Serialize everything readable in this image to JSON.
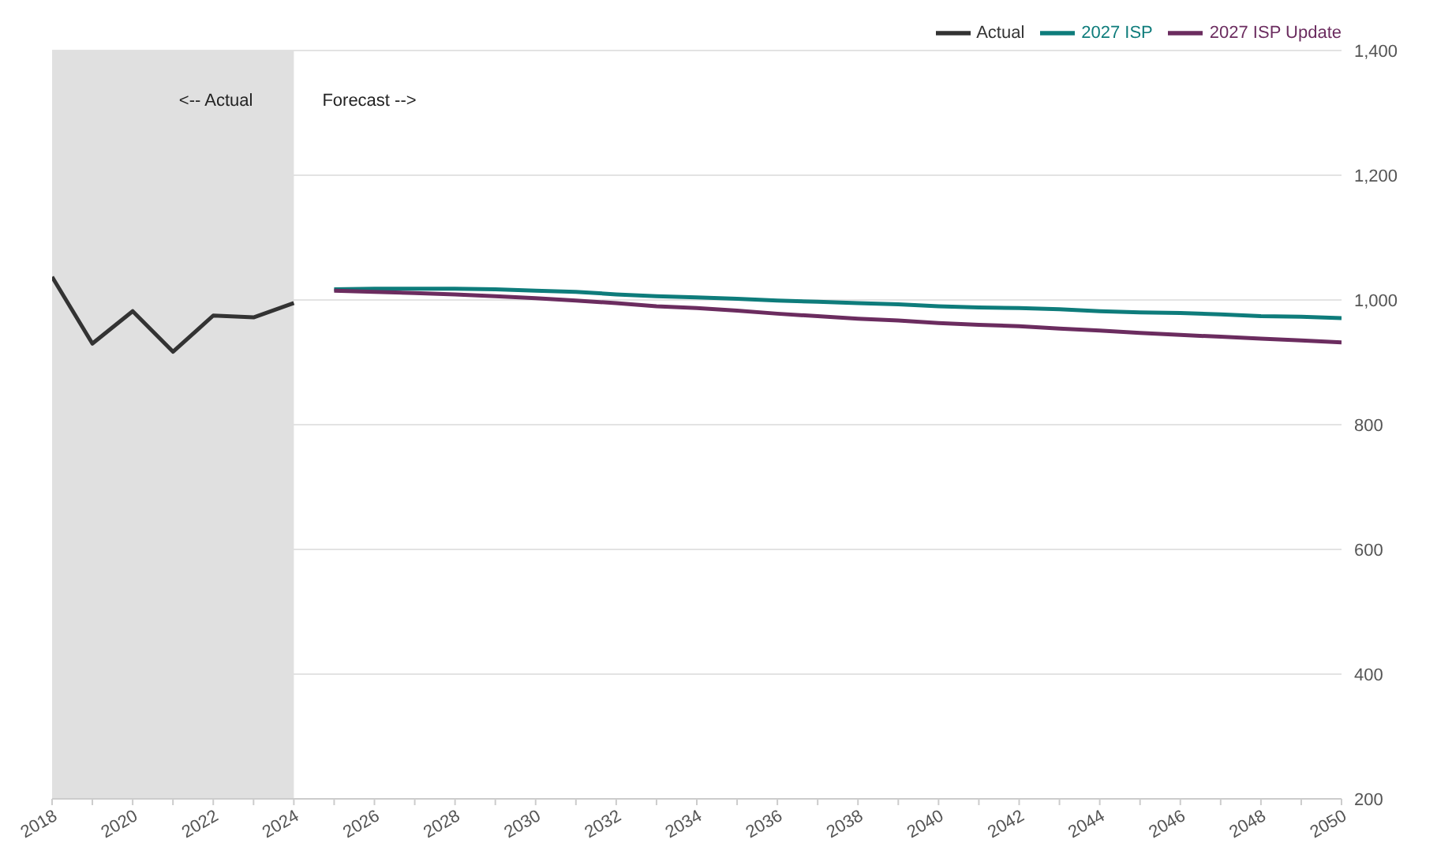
{
  "chart_data": {
    "type": "line",
    "xlim": [
      2018,
      2050
    ],
    "ylim": [
      200,
      1400
    ],
    "xticks": [
      2018,
      {
        "value": 2019,
        "label": null
      },
      2020,
      {
        "value": 2021,
        "label": null
      },
      2022,
      {
        "value": 2023,
        "label": null
      },
      2024,
      {
        "value": 2025,
        "label": null
      },
      2026,
      {
        "value": 2027,
        "label": null
      },
      2028,
      {
        "value": 2029,
        "label": null
      },
      2030,
      {
        "value": 2031,
        "label": null
      },
      2032,
      {
        "value": 2033,
        "label": null
      },
      2034,
      {
        "value": 2035,
        "label": null
      },
      2036,
      {
        "value": 2037,
        "label": null
      },
      2038,
      {
        "value": 2039,
        "label": null
      },
      2040,
      {
        "value": 2041,
        "label": null
      },
      2042,
      {
        "value": 2043,
        "label": null
      },
      2044,
      {
        "value": 2045,
        "label": null
      },
      2046,
      {
        "value": 2047,
        "label": null
      },
      2048,
      {
        "value": 2049,
        "label": null
      },
      2050
    ],
    "yticks": [
      200,
      {
        "value": 400,
        "label": "400"
      },
      {
        "value": 600,
        "label": "600"
      },
      {
        "value": 800,
        "label": "800"
      },
      {
        "value": 1000,
        "label": "1,000"
      },
      {
        "value": 1200,
        "label": "1,200"
      },
      {
        "value": 1400,
        "label": "1,400"
      }
    ],
    "grid": "y",
    "legend": "top right",
    "marker": "none",
    "line_style": "solid",
    "bands": [
      {
        "axis": "x",
        "from": 2018,
        "to": 2024,
        "color": "#e0e0e0"
      }
    ],
    "annotations": [
      "<-- Actual",
      "Forecast -->"
    ],
    "series": [
      {
        "name": "Actual",
        "color": "#333333",
        "x": [
          2018,
          2019,
          2020,
          2021,
          2022,
          2023,
          2024
        ],
        "values": [
          1037,
          930,
          982,
          917,
          975,
          972,
          995
        ]
      },
      {
        "name": "2027 ISP",
        "color": "#0e7c7b",
        "x": [
          2025,
          2026,
          2027,
          2028,
          2029,
          2030,
          2031,
          2032,
          2033,
          2034,
          2035,
          2036,
          2037,
          2038,
          2039,
          2040,
          2041,
          2042,
          2043,
          2044,
          2045,
          2046,
          2047,
          2048,
          2049,
          2050
        ],
        "values": [
          1017,
          1018,
          1018,
          1018,
          1017,
          1015,
          1013,
          1009,
          1006,
          1004,
          1002,
          999,
          997,
          995,
          993,
          990,
          988,
          987,
          985,
          982,
          980,
          979,
          977,
          974,
          973,
          971
        ]
      },
      {
        "name": "2027 ISP Update",
        "color": "#6b2c5f",
        "x": [
          2025,
          2026,
          2027,
          2028,
          2029,
          2030,
          2031,
          2032,
          2033,
          2034,
          2035,
          2036,
          2037,
          2038,
          2039,
          2040,
          2041,
          2042,
          2043,
          2044,
          2045,
          2046,
          2047,
          2048,
          2049,
          2050
        ],
        "values": [
          1015,
          1013,
          1011,
          1009,
          1006,
          1003,
          999,
          995,
          990,
          987,
          983,
          978,
          974,
          970,
          967,
          963,
          960,
          958,
          954,
          951,
          947,
          944,
          941,
          938,
          935,
          932
        ]
      }
    ]
  }
}
